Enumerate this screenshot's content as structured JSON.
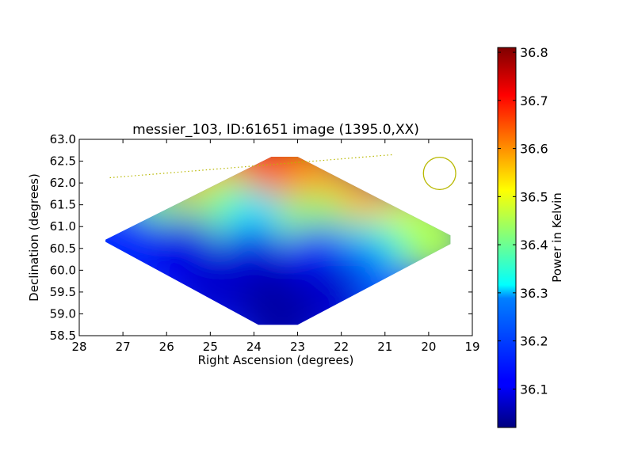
{
  "chart_data": {
    "type": "heatmap",
    "title": "messier_103, ID:61651 image (1395.0,XX)",
    "xlabel": "Right Ascension (degrees)",
    "ylabel": "Declination (degrees)",
    "xlim": [
      28,
      19
    ],
    "ylim": [
      58.5,
      63.0
    ],
    "x_ticks": [
      "28",
      "27",
      "26",
      "25",
      "24",
      "23",
      "22",
      "21",
      "20",
      "19"
    ],
    "y_ticks": [
      "58.5",
      "59.0",
      "59.5",
      "60.0",
      "60.5",
      "61.0",
      "61.5",
      "62.0",
      "62.5",
      "63.0"
    ],
    "colormap": "jet",
    "colorbar": {
      "label": "Power in Kelvin",
      "range": [
        36.02,
        36.81
      ],
      "ticks": [
        "36.1",
        "36.2",
        "36.3",
        "36.4",
        "36.5",
        "36.6",
        "36.7",
        "36.8"
      ]
    },
    "map_outline": [
      [
        27.4,
        60.7
      ],
      [
        23.6,
        62.6
      ],
      [
        23.0,
        62.6
      ],
      [
        19.5,
        60.8
      ],
      [
        19.5,
        60.6
      ],
      [
        23.0,
        58.75
      ],
      [
        23.9,
        58.75
      ],
      [
        27.4,
        60.65
      ]
    ],
    "features": [
      {
        "ra": 23.3,
        "dec": 62.45,
        "value": 36.78
      },
      {
        "ra": 23.0,
        "dec": 62.4,
        "value": 36.76
      },
      {
        "ra": 24.0,
        "dec": 62.3,
        "value": 36.66
      },
      {
        "ra": 25.0,
        "dec": 62.0,
        "value": 36.58
      },
      {
        "ra": 22.6,
        "dec": 62.0,
        "value": 36.6
      },
      {
        "ra": 21.3,
        "dec": 61.25,
        "value": 36.68
      },
      {
        "ra": 21.8,
        "dec": 61.5,
        "value": 36.58
      },
      {
        "ra": 20.3,
        "dec": 61.0,
        "value": 36.5
      },
      {
        "ra": 19.9,
        "dec": 60.7,
        "value": 36.45
      },
      {
        "ra": 26.3,
        "dec": 61.2,
        "value": 36.42
      },
      {
        "ra": 24.6,
        "dec": 61.3,
        "value": 36.42
      },
      {
        "ra": 23.9,
        "dec": 61.0,
        "value": 36.3
      },
      {
        "ra": 22.6,
        "dec": 61.0,
        "value": 36.43
      },
      {
        "ra": 21.3,
        "dec": 60.4,
        "value": 36.35
      },
      {
        "ra": 26.9,
        "dec": 60.6,
        "value": 36.15
      },
      {
        "ra": 25.6,
        "dec": 60.4,
        "value": 36.1
      },
      {
        "ra": 24.0,
        "dec": 60.2,
        "value": 36.1
      },
      {
        "ra": 22.5,
        "dec": 60.2,
        "value": 36.12
      },
      {
        "ra": 21.6,
        "dec": 59.9,
        "value": 36.2
      },
      {
        "ra": 24.8,
        "dec": 59.6,
        "value": 36.08
      },
      {
        "ra": 23.5,
        "dec": 59.3,
        "value": 36.05
      },
      {
        "ra": 22.3,
        "dec": 59.4,
        "value": 36.08
      },
      {
        "ra": 23.4,
        "dec": 58.85,
        "value": 36.05
      }
    ],
    "overlay_line": {
      "ra": [
        27.3,
        20.8
      ],
      "dec": [
        62.12,
        62.65
      ],
      "color": "#b8b800",
      "style": "dotted"
    },
    "beam_circle": {
      "ra": 19.75,
      "dec": 62.22,
      "radius_deg": 0.37,
      "color": "#b8b800"
    }
  }
}
